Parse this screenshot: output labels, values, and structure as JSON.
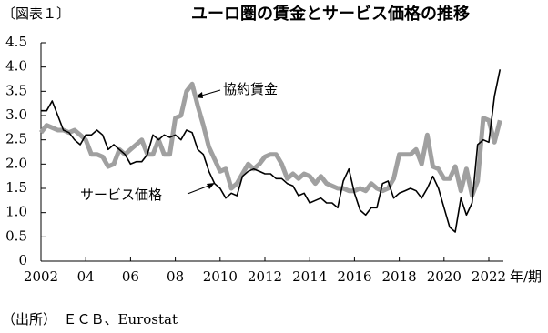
{
  "chart_data": {
    "type": "line",
    "figure_label": "〔図表１〕",
    "title": "ユーロ圏の賃金とサービス価格の推移",
    "x_label": "年/期",
    "source": "（出所）　ＥＣＢ、Eurostat",
    "annotations": [
      "協約賃金",
      "サービス価格"
    ],
    "x": [
      2002,
      2002.25,
      2002.5,
      2002.75,
      2003,
      2003.25,
      2003.5,
      2003.75,
      2004,
      2004.25,
      2004.5,
      2004.75,
      2005,
      2005.25,
      2005.5,
      2005.75,
      2006,
      2006.25,
      2006.5,
      2006.75,
      2007,
      2007.25,
      2007.5,
      2007.75,
      2008,
      2008.25,
      2008.5,
      2008.75,
      2009,
      2009.25,
      2009.5,
      2009.75,
      2010,
      2010.25,
      2010.5,
      2010.75,
      2011,
      2011.25,
      2011.5,
      2011.75,
      2012,
      2012.25,
      2012.5,
      2012.75,
      2013,
      2013.25,
      2013.5,
      2013.75,
      2014,
      2014.25,
      2014.5,
      2014.75,
      2015,
      2015.25,
      2015.5,
      2015.75,
      2016,
      2016.25,
      2016.5,
      2016.75,
      2017,
      2017.25,
      2017.5,
      2017.75,
      2018,
      2018.25,
      2018.5,
      2018.75,
      2019,
      2019.25,
      2019.5,
      2019.75,
      2020,
      2020.25,
      2020.5,
      2020.75,
      2021,
      2021.25,
      2021.5,
      2021.75,
      2022,
      2022.25,
      2022.5
    ],
    "series": [
      {
        "name": "協約賃金",
        "color": "#a0a0a0",
        "width": 5,
        "values": [
          2.65,
          2.8,
          2.75,
          2.7,
          2.7,
          2.65,
          2.7,
          2.6,
          2.5,
          2.2,
          2.2,
          2.15,
          1.95,
          2.0,
          2.3,
          2.2,
          2.3,
          2.4,
          2.5,
          2.2,
          2.2,
          2.5,
          2.2,
          2.2,
          2.95,
          3.0,
          3.5,
          3.65,
          3.2,
          2.8,
          2.35,
          2.1,
          1.85,
          1.9,
          1.5,
          1.6,
          1.8,
          2.0,
          1.9,
          2.0,
          2.15,
          2.2,
          2.2,
          2.0,
          1.7,
          1.8,
          1.7,
          1.8,
          1.75,
          1.6,
          1.75,
          1.6,
          1.55,
          1.5,
          1.5,
          1.45,
          1.45,
          1.5,
          1.45,
          1.6,
          1.5,
          1.45,
          1.5,
          1.7,
          2.2,
          2.2,
          2.2,
          2.3,
          2.0,
          2.6,
          1.95,
          1.9,
          1.7,
          1.7,
          1.95,
          1.45,
          1.9,
          1.35,
          1.65,
          2.95,
          2.9,
          2.45,
          2.9
        ]
      },
      {
        "name": "サービス価格",
        "color": "#000000",
        "width": 1.6,
        "values": [
          3.1,
          3.1,
          3.3,
          3.0,
          2.7,
          2.65,
          2.5,
          2.4,
          2.6,
          2.6,
          2.7,
          2.6,
          2.3,
          2.4,
          2.3,
          2.2,
          2.0,
          2.05,
          2.05,
          2.2,
          2.6,
          2.5,
          2.6,
          2.55,
          2.6,
          2.5,
          2.7,
          2.65,
          2.3,
          2.2,
          1.85,
          1.6,
          1.5,
          1.3,
          1.4,
          1.35,
          1.75,
          1.85,
          1.9,
          1.85,
          1.8,
          1.8,
          1.7,
          1.7,
          1.6,
          1.55,
          1.35,
          1.4,
          1.2,
          1.25,
          1.3,
          1.2,
          1.2,
          1.1,
          1.65,
          1.9,
          1.4,
          1.05,
          0.95,
          1.1,
          1.1,
          1.6,
          1.65,
          1.3,
          1.4,
          1.45,
          1.5,
          1.45,
          1.3,
          1.5,
          1.75,
          1.5,
          1.1,
          0.7,
          0.6,
          1.3,
          0.95,
          1.2,
          2.4,
          2.5,
          2.45,
          3.4,
          3.95
        ]
      }
    ],
    "xlim": [
      2002,
      2022.65
    ],
    "xticks": [
      2002,
      {
        "value": 2004,
        "label": "04"
      },
      {
        "value": 2006,
        "label": "06"
      },
      {
        "value": 2008,
        "label": "08"
      },
      2010,
      2012,
      2014,
      2016,
      2018,
      2020,
      2022
    ],
    "ylim": [
      0,
      4.5
    ],
    "yticks": [
      0,
      0.5,
      {
        "value": 1,
        "label": "1.0"
      },
      1.5,
      {
        "value": 2,
        "label": "2.0"
      },
      2.5,
      {
        "value": 3,
        "label": "3.0"
      },
      3.5,
      {
        "value": 4,
        "label": "4.0"
      },
      4.5
    ]
  }
}
